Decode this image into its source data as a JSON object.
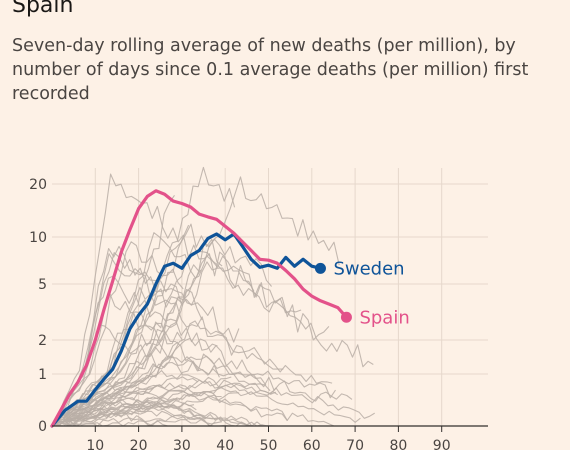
{
  "header": {
    "title": "Spain",
    "subtitle": "Seven-day rolling average of new deaths (per million), by number of days since 0.1 average deaths (per million) first recorded"
  },
  "colors": {
    "background": "#fdf1e6",
    "sweden": "#0f5499",
    "spain": "#e3528a",
    "other_countries": "#b8aea6",
    "grid": "#e6d8cc",
    "axis": "#33302e"
  },
  "chart_data": {
    "type": "line",
    "title": "",
    "xlabel": "",
    "ylabel": "",
    "y_scale": "log",
    "x_ticks": [
      "10",
      "20",
      "30",
      "40",
      "50",
      "60",
      "70",
      "80",
      "90"
    ],
    "y_ticks": [
      "0",
      "1",
      "2",
      "5",
      "10",
      "20"
    ],
    "y_tick_values": [
      0,
      1,
      2,
      5,
      10,
      20
    ],
    "xlim": [
      0,
      100
    ],
    "grid": true,
    "legend": "labels at line ends",
    "series": [
      {
        "name": "Sweden",
        "color": "#0f5499",
        "points": [
          [
            0,
            0.1
          ],
          [
            3,
            0.2
          ],
          [
            6,
            0.3
          ],
          [
            8,
            0.3
          ],
          [
            10,
            0.5
          ],
          [
            12,
            0.8
          ],
          [
            14,
            1.1
          ],
          [
            16,
            1.6
          ],
          [
            18,
            2.4
          ],
          [
            20,
            3.0
          ],
          [
            22,
            3.6
          ],
          [
            24,
            5.0
          ],
          [
            26,
            6.5
          ],
          [
            28,
            6.8
          ],
          [
            30,
            6.3
          ],
          [
            32,
            7.6
          ],
          [
            34,
            8.2
          ],
          [
            36,
            9.8
          ],
          [
            38,
            10.4
          ],
          [
            40,
            9.6
          ],
          [
            42,
            10.4
          ],
          [
            44,
            8.7
          ],
          [
            46,
            7.2
          ],
          [
            48,
            6.4
          ],
          [
            50,
            6.6
          ],
          [
            52,
            6.3
          ],
          [
            54,
            7.4
          ],
          [
            56,
            6.5
          ],
          [
            58,
            7.2
          ],
          [
            60,
            6.5
          ],
          [
            62,
            6.3
          ]
        ],
        "end_label": "Sweden"
      },
      {
        "name": "Spain",
        "color": "#e3528a",
        "points": [
          [
            0,
            0.1
          ],
          [
            2,
            0.2
          ],
          [
            4,
            0.4
          ],
          [
            6,
            0.7
          ],
          [
            8,
            1.2
          ],
          [
            10,
            2.0
          ],
          [
            12,
            3.3
          ],
          [
            14,
            5.2
          ],
          [
            16,
            8.0
          ],
          [
            18,
            11.0
          ],
          [
            20,
            14.5
          ],
          [
            22,
            17.0
          ],
          [
            24,
            18.3
          ],
          [
            26,
            17.5
          ],
          [
            28,
            16.0
          ],
          [
            30,
            15.5
          ],
          [
            32,
            14.8
          ],
          [
            34,
            13.5
          ],
          [
            36,
            13.0
          ],
          [
            38,
            12.6
          ],
          [
            40,
            11.5
          ],
          [
            42,
            10.5
          ],
          [
            44,
            9.3
          ],
          [
            46,
            8.2
          ],
          [
            48,
            7.2
          ],
          [
            50,
            7.1
          ],
          [
            52,
            6.8
          ],
          [
            54,
            6.1
          ],
          [
            56,
            5.4
          ],
          [
            58,
            4.6
          ],
          [
            60,
            4.1
          ],
          [
            62,
            3.8
          ],
          [
            64,
            3.6
          ],
          [
            66,
            3.4
          ],
          [
            68,
            2.9
          ]
        ],
        "end_label": "Spain"
      }
    ],
    "background_series_count": 48
  }
}
